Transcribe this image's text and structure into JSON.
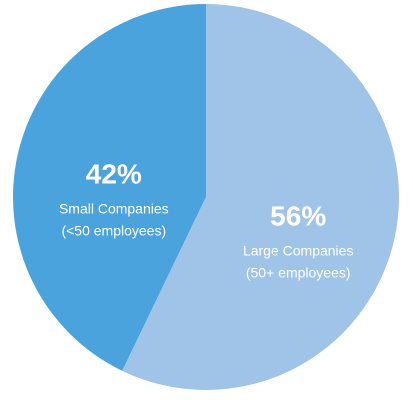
{
  "chart_data": {
    "type": "pie",
    "categories": [
      "Small Companies",
      "Large Companies"
    ],
    "category_notes": [
      "(<50 employees)",
      "(50+ employees)"
    ],
    "values": [
      42,
      56
    ],
    "value_labels": [
      "42%",
      "56%"
    ],
    "colors": [
      "#4aa3dc",
      "#a0c3e8"
    ]
  }
}
